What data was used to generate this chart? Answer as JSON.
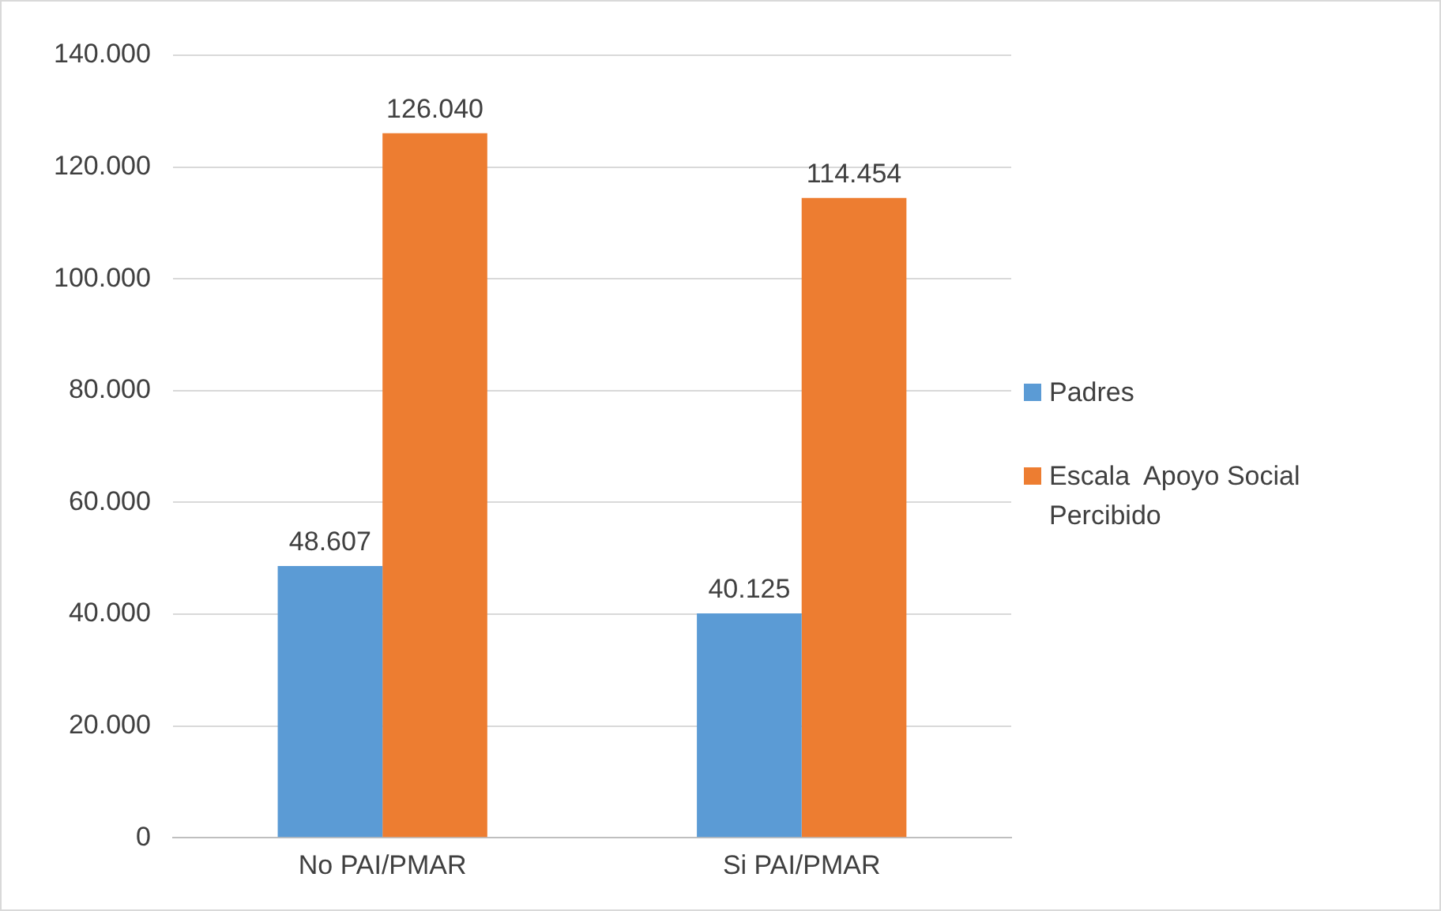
{
  "chart_data": {
    "type": "bar",
    "categories": [
      "No PAI/PMAR",
      "Si PAI/PMAR"
    ],
    "series": [
      {
        "name": "Padres",
        "color": "#5b9bd5",
        "values": [
          48607,
          40125
        ],
        "value_labels": [
          "48.607",
          "40.125"
        ]
      },
      {
        "name": "Escala  Apoyo Social Percibido",
        "color": "#ed7d31",
        "values": [
          126040,
          114454
        ],
        "value_labels": [
          "126.040",
          "114.454"
        ]
      }
    ],
    "ylim": [
      0,
      140000
    ],
    "yticks": [
      {
        "value": 0,
        "label": "0"
      },
      {
        "value": 20000,
        "label": "20.000"
      },
      {
        "value": 40000,
        "label": "40.000"
      },
      {
        "value": 60000,
        "label": "60.000"
      },
      {
        "value": 80000,
        "label": "80.000"
      },
      {
        "value": 100000,
        "label": "100.000"
      },
      {
        "value": 120000,
        "label": "120.000"
      },
      {
        "value": 140000,
        "label": "140.000"
      }
    ],
    "grid": "y",
    "legend": "right"
  }
}
